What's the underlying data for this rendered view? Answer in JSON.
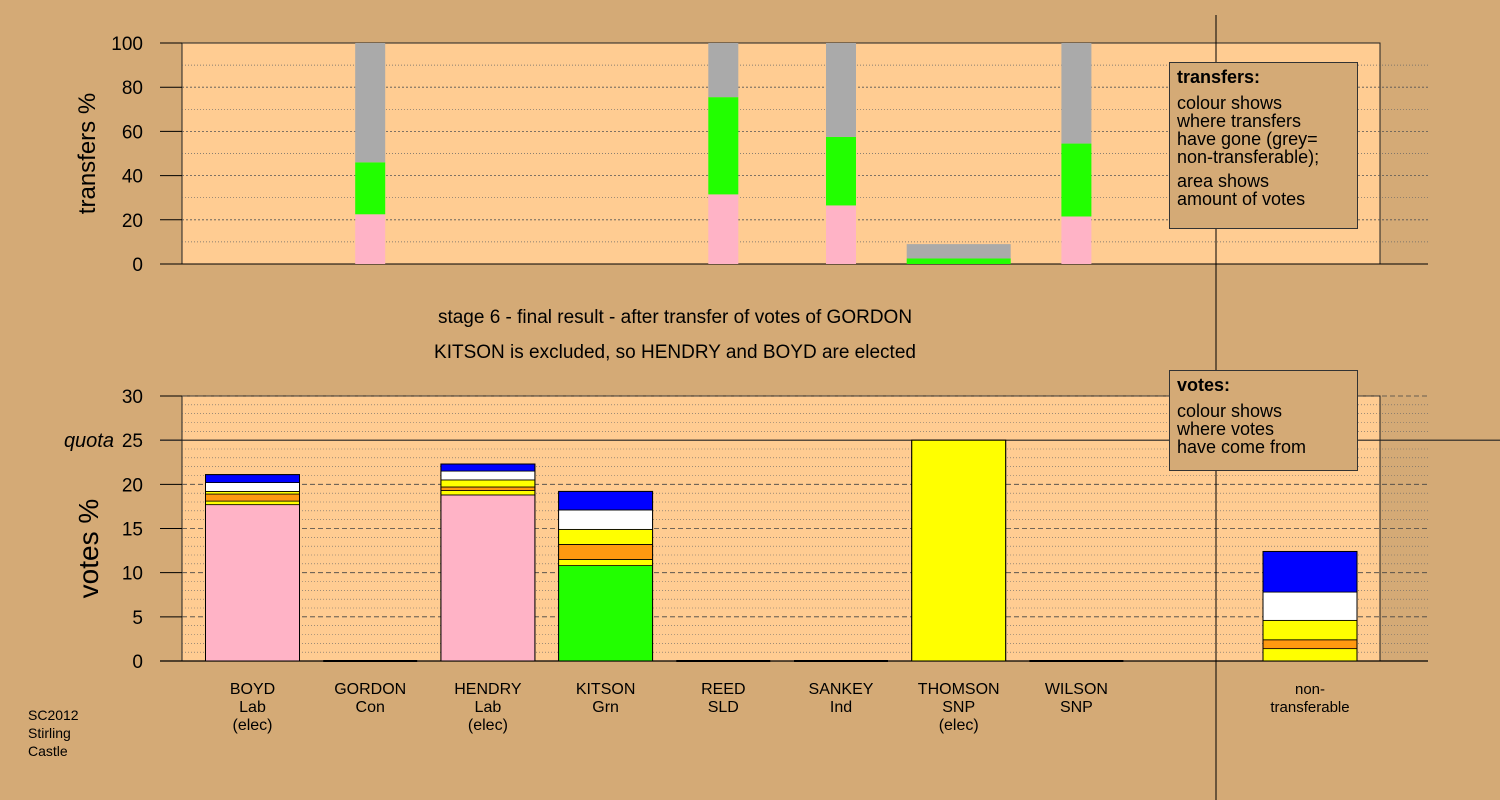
{
  "colors": {
    "background": "#d4aa76",
    "plot_background": "#ffcc92",
    "Lab": "#ffb3c6",
    "Con": "#0000ff",
    "Grn": "#22ff00",
    "SLD": "#ff9910",
    "Ind": "#ffffff",
    "SNP": "#ffff00",
    "non_transferable": "#aaaaaa"
  },
  "chart_data": [
    {
      "type": "bar",
      "stacked": true,
      "ylabel": "transfers %",
      "ylim": [
        0,
        100
      ],
      "yticks": [
        0,
        20,
        40,
        60,
        80,
        100
      ],
      "grid": true,
      "categories": [
        "BOYD",
        "GORDON",
        "HENDRY",
        "KITSON",
        "REED",
        "SANKEY",
        "THOMSON",
        "WILSON"
      ],
      "series": [
        {
          "color": "Lab",
          "values": [
            0,
            22.5,
            0,
            0,
            31.5,
            26.5,
            0,
            21.5
          ]
        },
        {
          "color": "Grn",
          "values": [
            0,
            23.5,
            0,
            0,
            44,
            31,
            2.5,
            33
          ]
        },
        {
          "color": "non_transferable",
          "values": [
            0,
            54,
            0,
            0,
            24.5,
            42.5,
            6.5,
            45.5
          ]
        }
      ]
    },
    {
      "type": "bar",
      "stacked": true,
      "ylabel": "votes %",
      "ylim": [
        0,
        30
      ],
      "yticks": [
        0,
        5,
        10,
        15,
        20,
        25,
        30
      ],
      "quota": {
        "label": "quota",
        "value": 25
      },
      "grid": true,
      "categories": [
        "BOYD",
        "GORDON",
        "HENDRY",
        "KITSON",
        "REED",
        "SANKEY",
        "THOMSON",
        "WILSON",
        "non-transferable"
      ],
      "series": [
        {
          "color": "Lab",
          "values": [
            17.7,
            0,
            18.8,
            0,
            0,
            0,
            0,
            0,
            0
          ]
        },
        {
          "color": "Grn",
          "values": [
            0,
            0,
            0,
            10.8,
            0,
            0,
            0,
            0,
            0
          ]
        },
        {
          "color": "SNP",
          "values": [
            0.4,
            0,
            0.5,
            0.7,
            0,
            0,
            25,
            0,
            1.4
          ]
        },
        {
          "color": "SLD",
          "values": [
            0.8,
            0,
            0.4,
            1.7,
            0,
            0,
            0,
            0,
            1.0
          ]
        },
        {
          "color": "SNP",
          "values": [
            0.3,
            0,
            0.8,
            1.7,
            0,
            0,
            0,
            0,
            2.2
          ]
        },
        {
          "color": "Ind",
          "values": [
            1.0,
            0,
            1.0,
            2.2,
            0,
            0,
            0,
            0,
            3.2
          ]
        },
        {
          "color": "Con",
          "values": [
            0.9,
            0,
            0.8,
            2.1,
            0,
            0,
            0,
            0,
            4.6
          ]
        }
      ]
    }
  ],
  "candidates": [
    {
      "name": "BOYD",
      "party": "Lab",
      "status": "(elec)"
    },
    {
      "name": "GORDON",
      "party": "Con",
      "status": ""
    },
    {
      "name": "HENDRY",
      "party": "Lab",
      "status": "(elec)"
    },
    {
      "name": "KITSON",
      "party": "Grn",
      "status": ""
    },
    {
      "name": "REED",
      "party": "SLD",
      "status": ""
    },
    {
      "name": "SANKEY",
      "party": "Ind",
      "status": ""
    },
    {
      "name": "THOMSON",
      "party": "SNP",
      "status": "(elec)"
    },
    {
      "name": "WILSON",
      "party": "SNP",
      "status": ""
    },
    {
      "name": "non-",
      "party": "transferable",
      "status": ""
    }
  ],
  "stage_title": "stage 6 - final result - after transfer of votes of GORDON",
  "stage_subtitle": "KITSON is excluded, so HENDRY and BOYD are elected",
  "transfers_legend": {
    "title": "transfers:",
    "lines": [
      "colour shows",
      "where transfers",
      "have gone (grey=",
      "non-transferable);"
    ],
    "lines2": [
      "area shows",
      "amount of votes"
    ]
  },
  "votes_legend": {
    "title": "votes:",
    "lines": [
      "colour shows",
      "where votes",
      "have come from"
    ]
  },
  "footnote": [
    "SC2012",
    "Stirling",
    "Castle"
  ]
}
